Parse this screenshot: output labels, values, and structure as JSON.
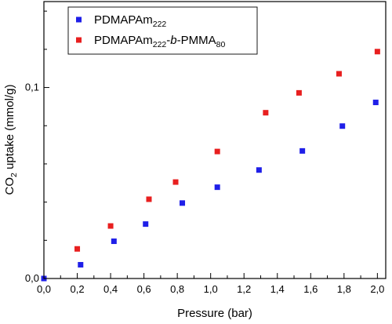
{
  "chart_data": {
    "type": "scatter",
    "title": "",
    "xlabel": "Pressure (bar)",
    "ylabel_parts": {
      "main": "CO",
      "sub": "2",
      "rest": " uptake (mmol/g)"
    },
    "xlim": [
      0.0,
      2.05
    ],
    "ylim": [
      0.0,
      0.145
    ],
    "x_ticks": [
      {
        "value": 0.0,
        "label": "0,0"
      },
      {
        "value": 0.2,
        "label": "0,2"
      },
      {
        "value": 0.4,
        "label": "0,4"
      },
      {
        "value": 0.6,
        "label": "0,6"
      },
      {
        "value": 0.8,
        "label": "0,8"
      },
      {
        "value": 1.0,
        "label": "1,0"
      },
      {
        "value": 1.2,
        "label": "1,2"
      },
      {
        "value": 1.4,
        "label": "1,4"
      },
      {
        "value": 1.6,
        "label": "1,6"
      },
      {
        "value": 1.8,
        "label": "1,8"
      },
      {
        "value": 2.0,
        "label": "2,0"
      }
    ],
    "y_ticks": [
      {
        "value": 0.0,
        "label": "0,0"
      },
      {
        "value": 0.1,
        "label": "0,1"
      }
    ],
    "grid": false,
    "legend_position": "top-left",
    "series": [
      {
        "name_parts": [
          {
            "t": "PDMAPAm"
          },
          {
            "t": "222",
            "sub": true
          }
        ],
        "color": "#1f1fe8",
        "points": [
          [
            0.0,
            0.0
          ],
          [
            0.22,
            0.0072
          ],
          [
            0.42,
            0.0195
          ],
          [
            0.61,
            0.0285
          ],
          [
            0.83,
            0.0395
          ],
          [
            1.04,
            0.0478
          ],
          [
            1.29,
            0.0568
          ],
          [
            1.55,
            0.0668
          ],
          [
            1.79,
            0.0798
          ],
          [
            1.99,
            0.0922
          ]
        ]
      },
      {
        "name_parts": [
          {
            "t": "PDMAPAm"
          },
          {
            "t": "222",
            "sub": true
          },
          {
            "t": "-"
          },
          {
            "t": "b",
            "italic": true
          },
          {
            "t": "-PMMA"
          },
          {
            "t": "80",
            "sub": true
          }
        ],
        "color": "#e81f1f",
        "points": [
          [
            0.2,
            0.0155
          ],
          [
            0.4,
            0.0275
          ],
          [
            0.63,
            0.0415
          ],
          [
            0.79,
            0.0505
          ],
          [
            1.04,
            0.0665
          ],
          [
            1.33,
            0.0868
          ],
          [
            1.53,
            0.0972
          ],
          [
            1.77,
            0.1072
          ],
          [
            2.0,
            0.1188
          ]
        ]
      }
    ]
  }
}
